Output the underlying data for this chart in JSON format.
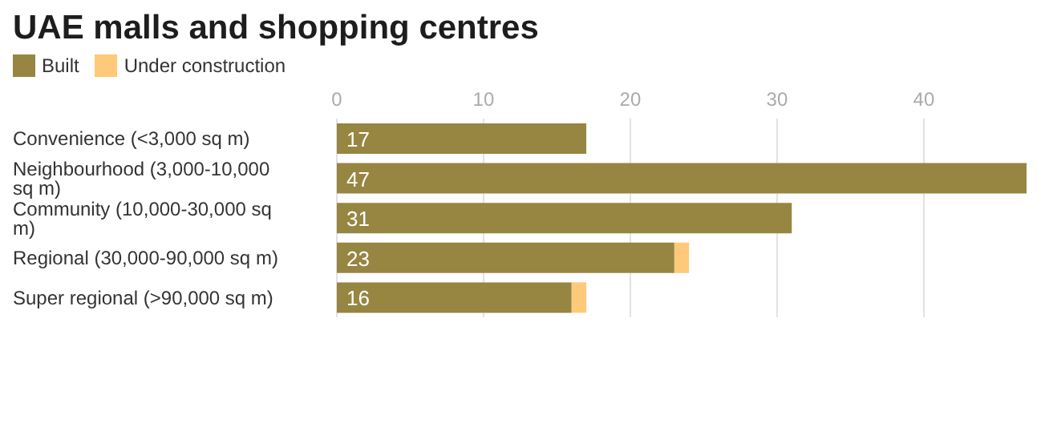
{
  "chart_data": {
    "type": "bar",
    "orientation": "horizontal",
    "stacked": true,
    "title": "UAE malls and shopping centres",
    "categories": [
      "Convenience (<3,000 sq m)",
      "Neighbourhood (3,000-10,000 sq m)",
      "Community (10,000-30,000 sq m)",
      "Regional (30,000-90,000 sq m)",
      "Super regional (>90,000 sq m)"
    ],
    "series": [
      {
        "name": "Built",
        "color": "#978642",
        "values": [
          17,
          47,
          31,
          23,
          16
        ],
        "value_labels": [
          "17",
          "47",
          "31",
          "23",
          "16"
        ]
      },
      {
        "name": "Under construction",
        "color": "#fec979",
        "values": [
          null,
          null,
          null,
          1,
          1
        ]
      }
    ],
    "xlim": [
      0,
      47
    ],
    "xticks": [
      0,
      10,
      20,
      30,
      40
    ],
    "grid": "x",
    "legend": "top left"
  }
}
